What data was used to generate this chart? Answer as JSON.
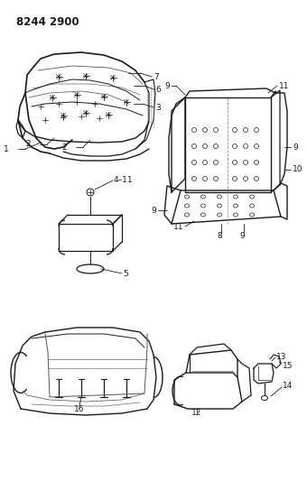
{
  "title": "8244 2900",
  "background_color": "#ffffff",
  "line_color": "#1a1a1a",
  "label_fontsize": 6.5,
  "fig_width": 3.4,
  "fig_height": 5.33,
  "dpi": 100,
  "title_fontsize": 8.5
}
